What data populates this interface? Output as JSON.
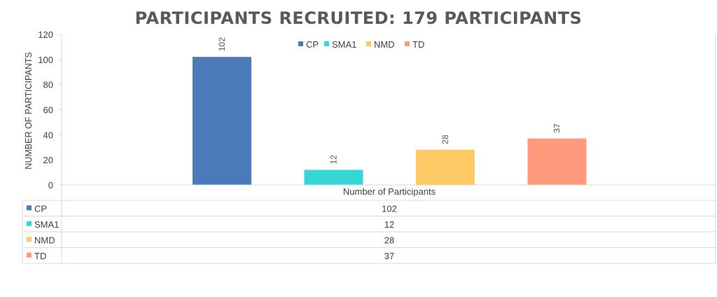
{
  "chart_data": {
    "type": "bar",
    "title": "PARTICIPANTS RECRUITED: 179 PARTICIPANTS",
    "ylabel": "NUMBER OF PARTICIPANTS",
    "ylim": [
      0,
      120
    ],
    "yticks": [
      0,
      20,
      40,
      60,
      80,
      100,
      120
    ],
    "category": "Number of Participants",
    "legend_position": "top",
    "data_table": true,
    "series": [
      {
        "name": "CP",
        "value": 102,
        "color": "#4a7ab9"
      },
      {
        "name": "SMA1",
        "value": 12,
        "color": "#36d6d6"
      },
      {
        "name": "NMD",
        "value": 28,
        "color": "#fdca65"
      },
      {
        "name": "TD",
        "value": 37,
        "color": "#ff9a7c"
      }
    ]
  }
}
